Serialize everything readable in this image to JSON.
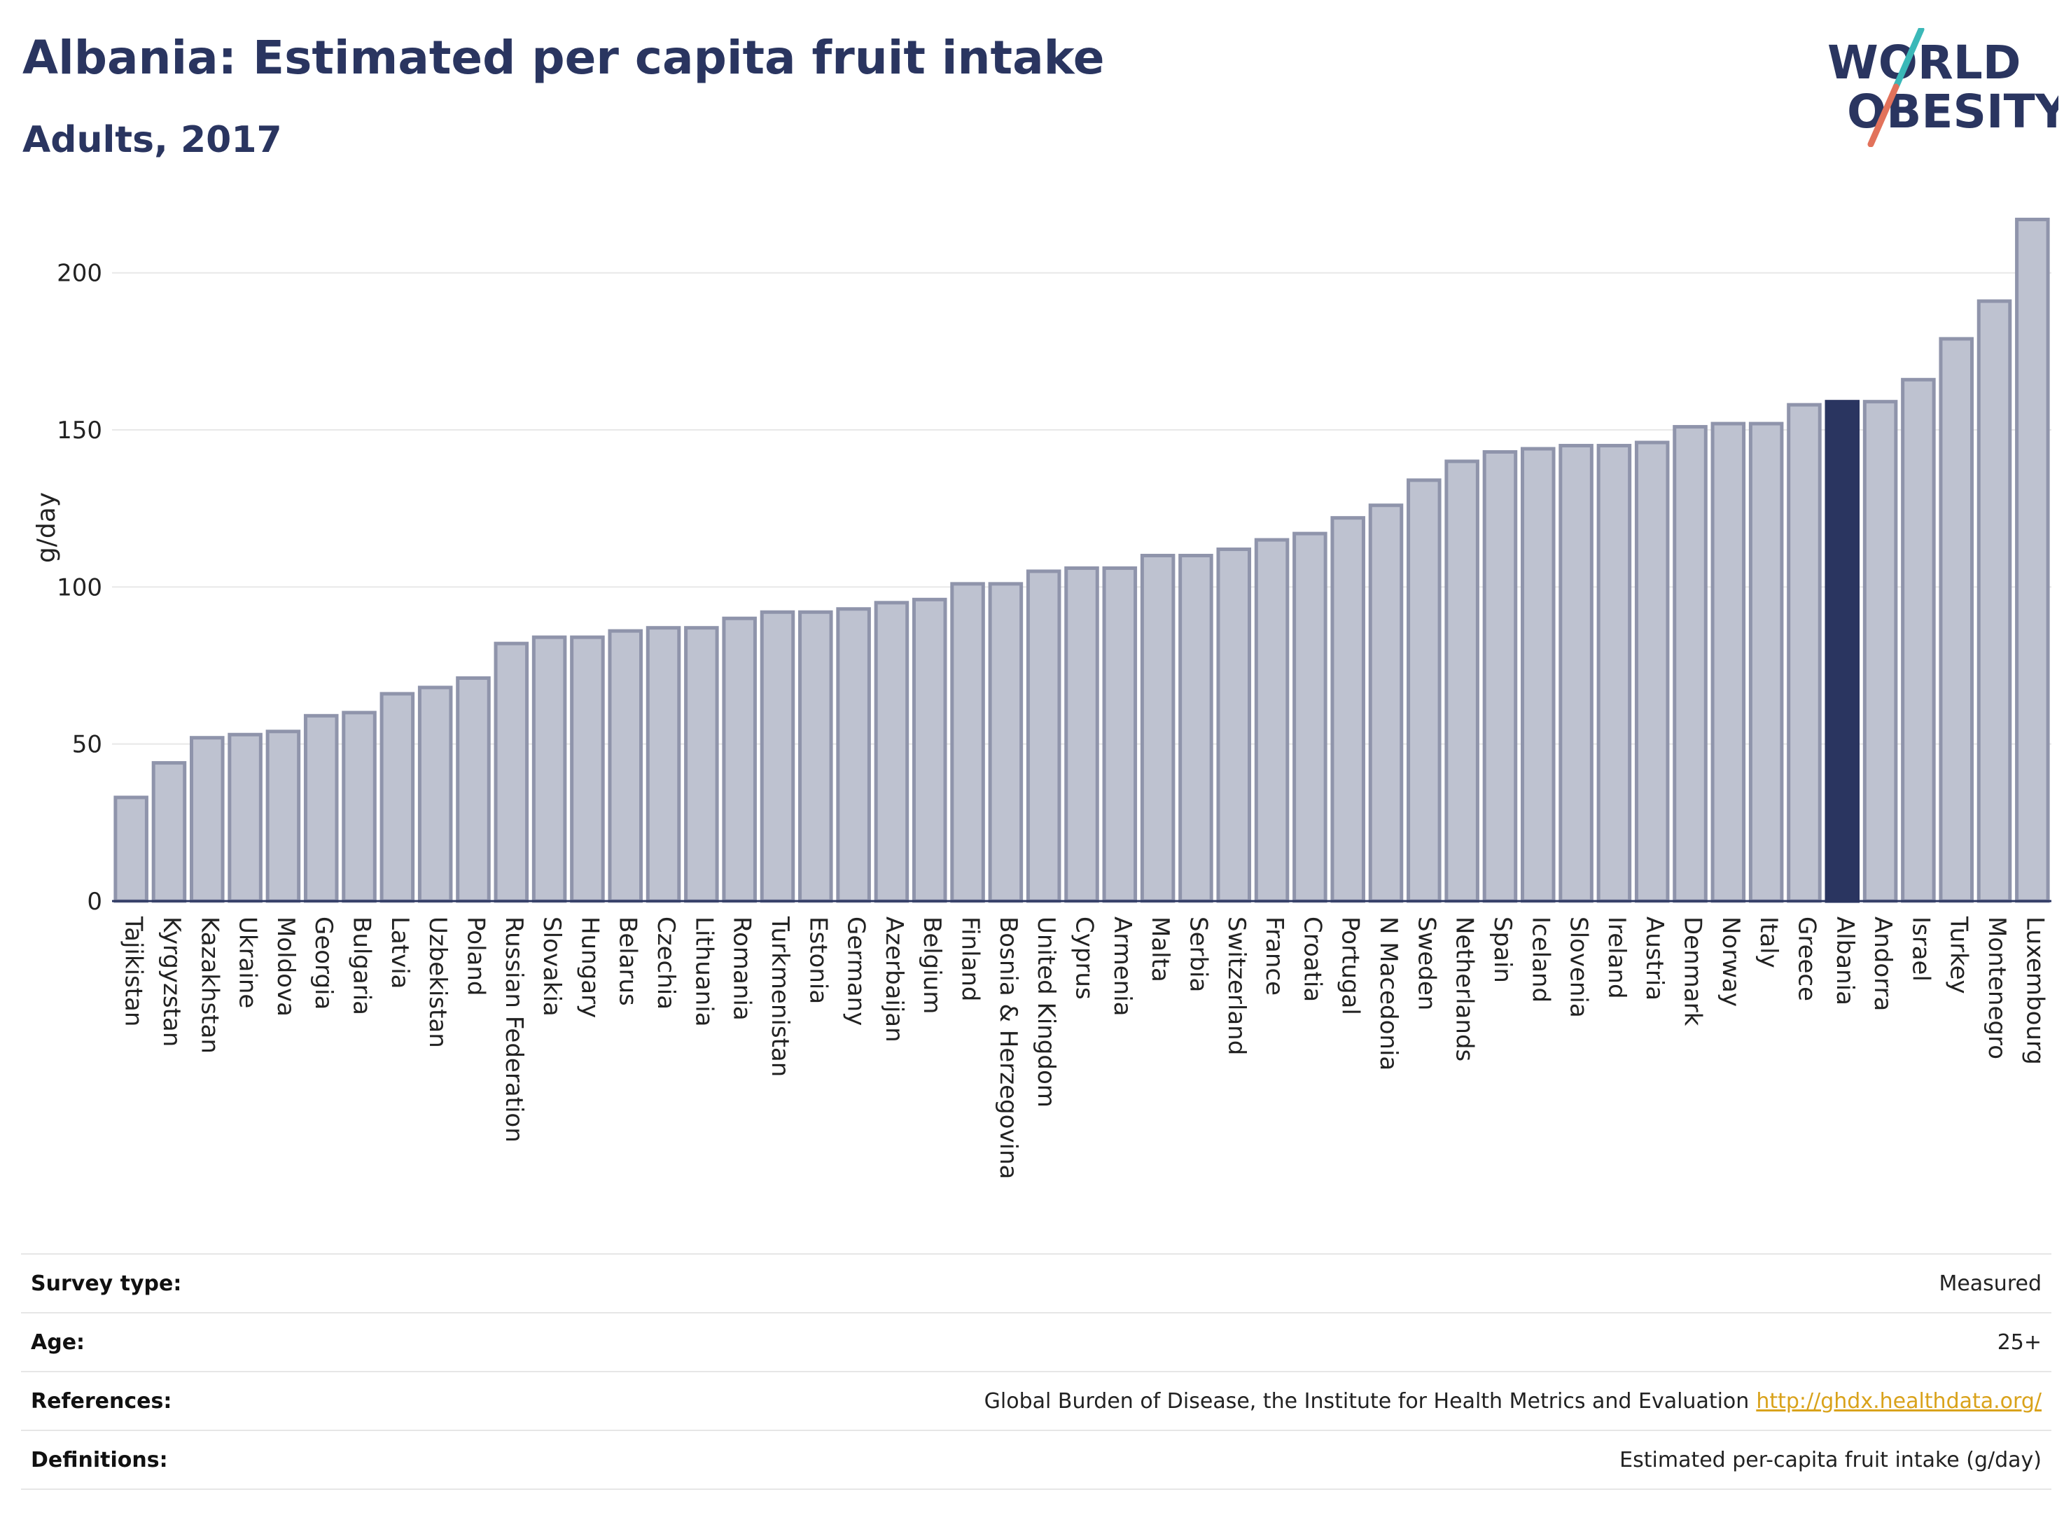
{
  "header": {
    "title": "Albania: Estimated per capita fruit intake",
    "subtitle": "Adults, 2017"
  },
  "logo": {
    "line1": "WORLD",
    "line2": "OBESITY",
    "colors": {
      "text": "#2a3560",
      "accent_teal": "#3bb8b8",
      "accent_red": "#e2725b"
    }
  },
  "chart_data": {
    "type": "bar",
    "categories": [
      "Tajikistan",
      "Kyrgyzstan",
      "Kazakhstan",
      "Ukraine",
      "Moldova",
      "Georgia",
      "Bulgaria",
      "Latvia",
      "Uzbekistan",
      "Poland",
      "Russian Federation",
      "Slovakia",
      "Hungary",
      "Belarus",
      "Czechia",
      "Lithuania",
      "Romania",
      "Turkmenistan",
      "Estonia",
      "Germany",
      "Azerbaijan",
      "Belgium",
      "Finland",
      "Bosnia & Herzegovina",
      "United Kingdom",
      "Cyprus",
      "Armenia",
      "Malta",
      "Serbia",
      "Switzerland",
      "France",
      "Croatia",
      "Portugal",
      "N Macedonia",
      "Sweden",
      "Netherlands",
      "Spain",
      "Iceland",
      "Slovenia",
      "Ireland",
      "Austria",
      "Denmark",
      "Norway",
      "Italy",
      "Greece",
      "Albania",
      "Andorra",
      "Israel",
      "Turkey",
      "Montenegro",
      "Luxembourg"
    ],
    "values": [
      33,
      44,
      52,
      53,
      54,
      59,
      60,
      66,
      68,
      71,
      82,
      84,
      84,
      86,
      87,
      87,
      90,
      92,
      92,
      93,
      95,
      96,
      101,
      101,
      105,
      106,
      106,
      110,
      110,
      112,
      115,
      117,
      122,
      126,
      134,
      140,
      143,
      144,
      145,
      145,
      146,
      151,
      152,
      152,
      158,
      159,
      159,
      166,
      179,
      191,
      217
    ],
    "highlight": "Albania",
    "ylabel": "g/day",
    "ylim": [
      0,
      220
    ],
    "yticks": [
      0,
      50,
      100,
      150,
      200
    ],
    "grid": true,
    "colors": {
      "bar": "#bec2d0",
      "bar_edge": "#8f94ab",
      "highlight": "#2a3560",
      "grid": "#e8e8e8",
      "axis": "#2a3560"
    }
  },
  "info": {
    "rows": [
      {
        "key": "Survey type:",
        "value": "Measured",
        "link": ""
      },
      {
        "key": "Age:",
        "value": "25+",
        "link": ""
      },
      {
        "key": "References:",
        "value": "Global Burden of Disease, the Institute for Health Metrics and Evaluation",
        "link": "http://ghdx.healthdata.org/"
      },
      {
        "key": "Definitions:",
        "value": "Estimated per-capita fruit intake (g/day)",
        "link": ""
      }
    ]
  }
}
